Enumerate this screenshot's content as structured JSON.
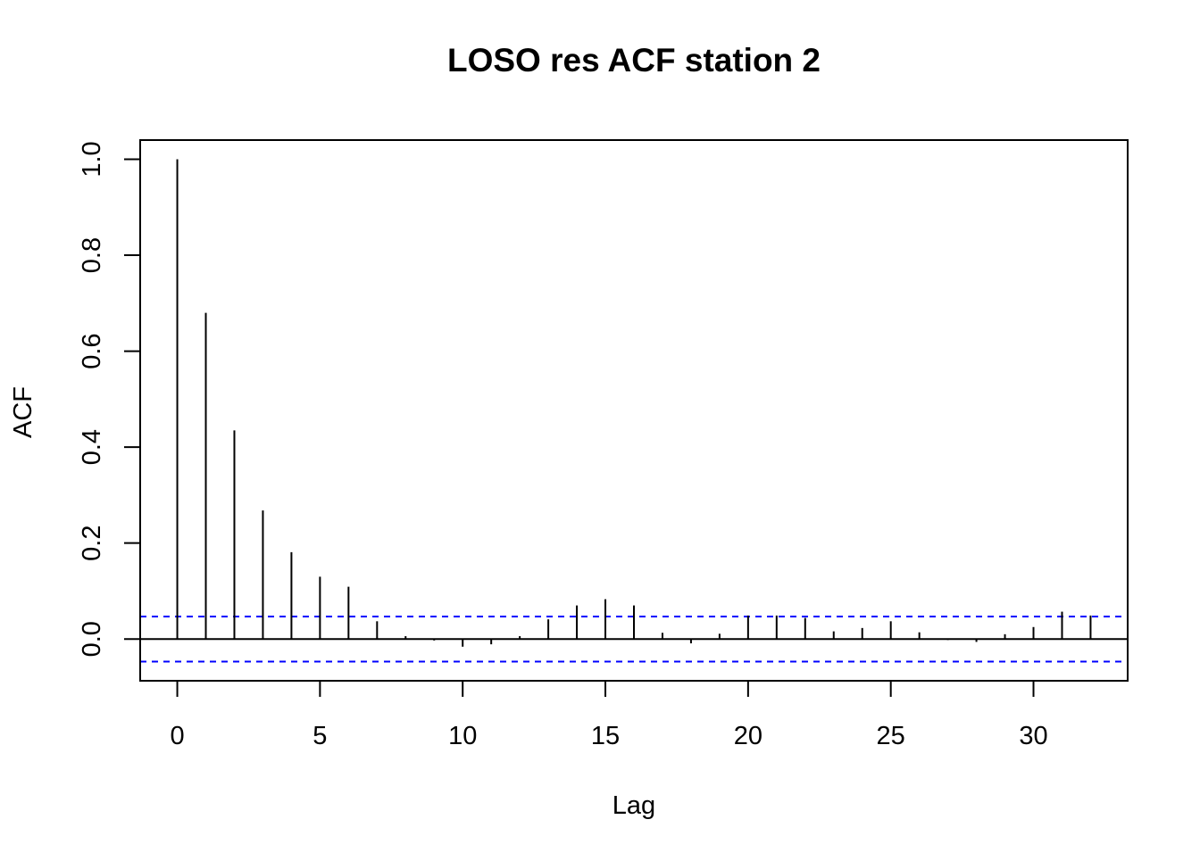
{
  "chart_data": {
    "type": "bar",
    "title": "LOSO res ACF station 2",
    "xlabel": "Lag",
    "ylabel": "ACF",
    "xlim": [
      -1.3,
      33.3
    ],
    "ylim": [
      -0.087,
      1.04
    ],
    "x_ticks": [
      0,
      5,
      10,
      15,
      20,
      25,
      30
    ],
    "x_tick_labels": [
      "0",
      "5",
      "10",
      "15",
      "20",
      "25",
      "30"
    ],
    "y_ticks": [
      0.0,
      0.2,
      0.4,
      0.6,
      0.8,
      1.0
    ],
    "y_tick_labels": [
      "0.0",
      "0.2",
      "0.4",
      "0.6",
      "0.8",
      "1.0"
    ],
    "grid": false,
    "legend": "none",
    "confidence_bound": 0.047,
    "colors": {
      "bars": "#000000",
      "zero_line": "#000000",
      "confidence_lines": "#0000ff",
      "frame": "#000000"
    },
    "x": [
      0,
      1,
      2,
      3,
      4,
      5,
      6,
      7,
      8,
      9,
      10,
      11,
      12,
      13,
      14,
      15,
      16,
      17,
      18,
      19,
      20,
      21,
      22,
      23,
      24,
      25,
      26,
      27,
      28,
      29,
      30,
      31,
      32
    ],
    "values": [
      1.0,
      0.68,
      0.435,
      0.268,
      0.181,
      0.13,
      0.109,
      0.037,
      0.006,
      -0.003,
      -0.016,
      -0.011,
      0.006,
      0.041,
      0.07,
      0.083,
      0.07,
      0.013,
      -0.009,
      0.011,
      0.049,
      0.049,
      0.044,
      0.016,
      0.023,
      0.037,
      0.014,
      -0.002,
      -0.006,
      0.01,
      0.025,
      0.057,
      0.049
    ]
  }
}
